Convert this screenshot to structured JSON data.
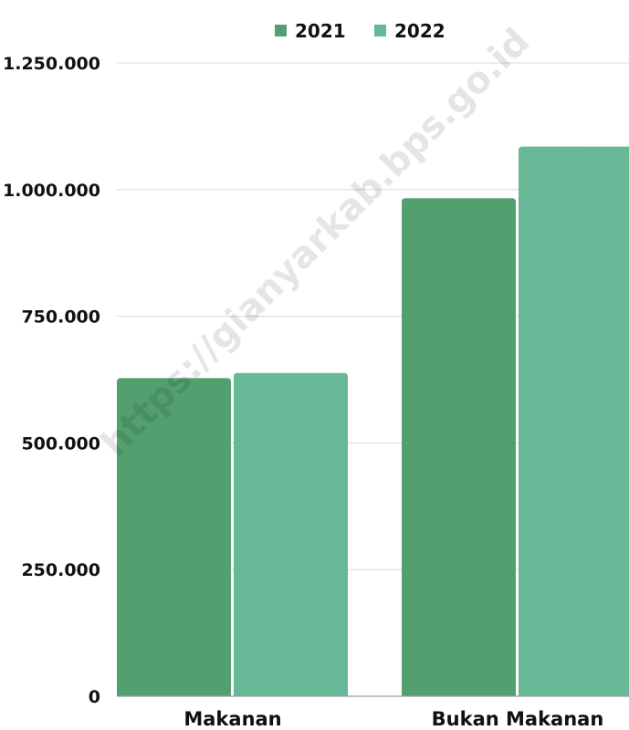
{
  "chart_data": {
    "type": "bar",
    "title": "",
    "xlabel": "",
    "ylabel": "",
    "categories": [
      "Makanan",
      "Bukan Makanan"
    ],
    "series": [
      {
        "name": "2021",
        "values": [
          628000,
          983000
        ],
        "color": "#52A06F"
      },
      {
        "name": "2022",
        "values": [
          638000,
          1085000
        ],
        "color": "#66B896"
      }
    ],
    "ylim": [
      0,
      1250000
    ],
    "yticks": [
      {
        "value": 0,
        "label": "0"
      },
      {
        "value": 250000,
        "label": "250.000"
      },
      {
        "value": 500000,
        "label": "500.000"
      },
      {
        "value": 750000,
        "label": "750.000"
      },
      {
        "value": 1000000,
        "label": "1.000.000"
      },
      {
        "value": 1250000,
        "label": "1.250.000"
      }
    ],
    "grid": true,
    "legend": "top"
  },
  "watermark": "https://gianyarkab.bps.go.id"
}
